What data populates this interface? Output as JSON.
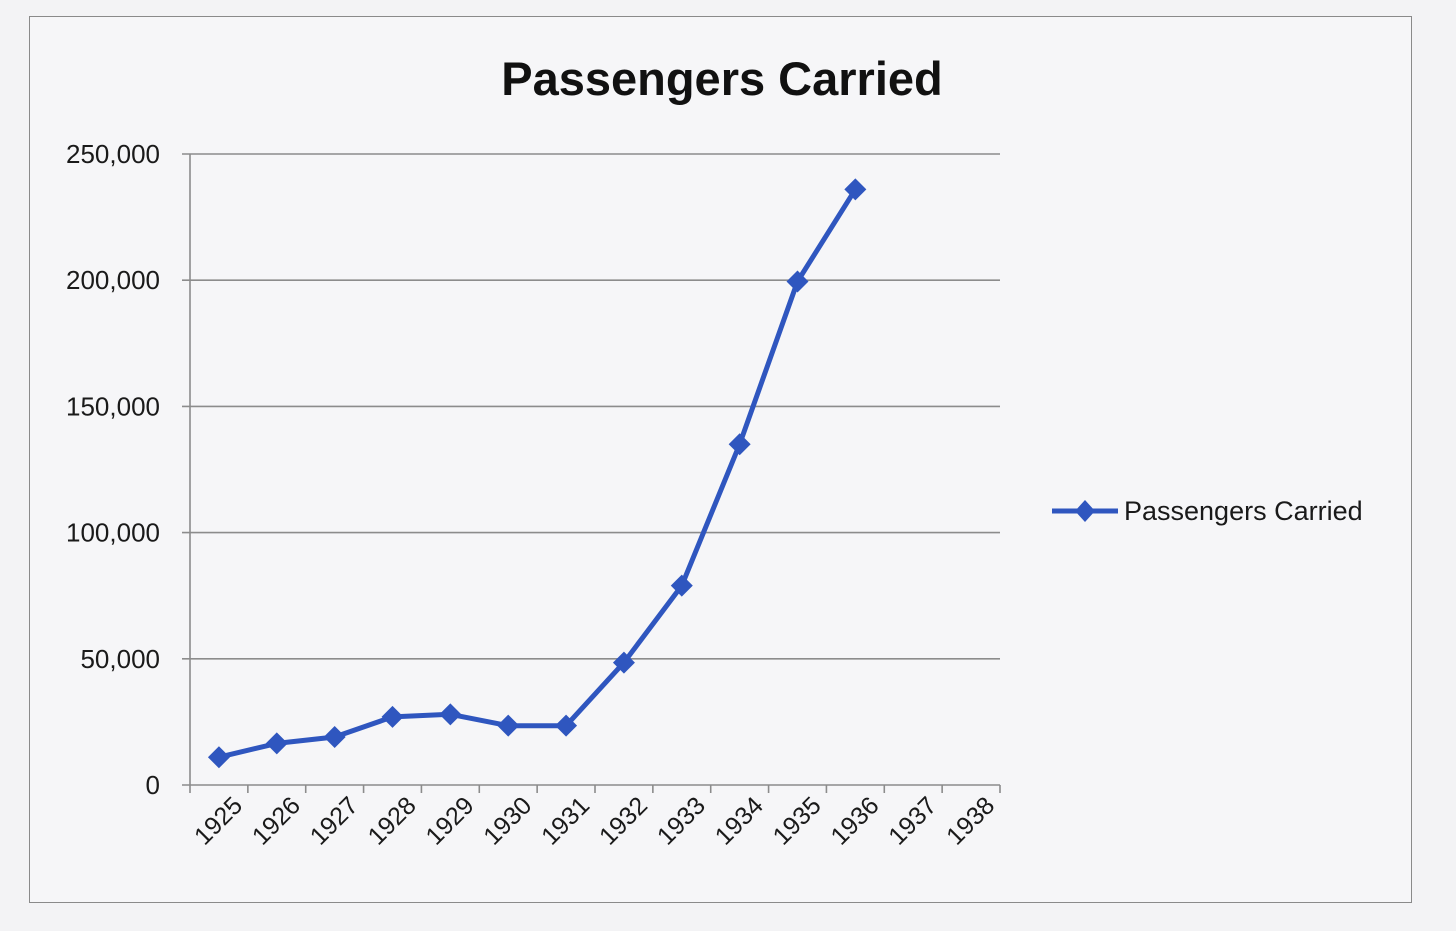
{
  "chart_data": {
    "type": "line",
    "title": "Passengers Carried",
    "xlabel": "",
    "ylabel": "",
    "categories": [
      "1925",
      "1926",
      "1927",
      "1928",
      "1929",
      "1930",
      "1931",
      "1932",
      "1933",
      "1934",
      "1935",
      "1936",
      "1937",
      "1938"
    ],
    "y_ticks": [
      0,
      50000,
      100000,
      150000,
      200000,
      250000
    ],
    "y_tick_labels": [
      "0",
      "50,000",
      "100,000",
      "150,000",
      "200,000",
      "250,000"
    ],
    "ylim": [
      0,
      250000
    ],
    "grid": true,
    "legend_position": "right",
    "series": [
      {
        "name": "Passengers Carried",
        "color": "#2f56bf",
        "marker": "diamond",
        "values": [
          11000,
          16500,
          19000,
          27000,
          28000,
          23500,
          23500,
          48500,
          79000,
          135000,
          199500,
          236000,
          null,
          null
        ]
      }
    ]
  }
}
